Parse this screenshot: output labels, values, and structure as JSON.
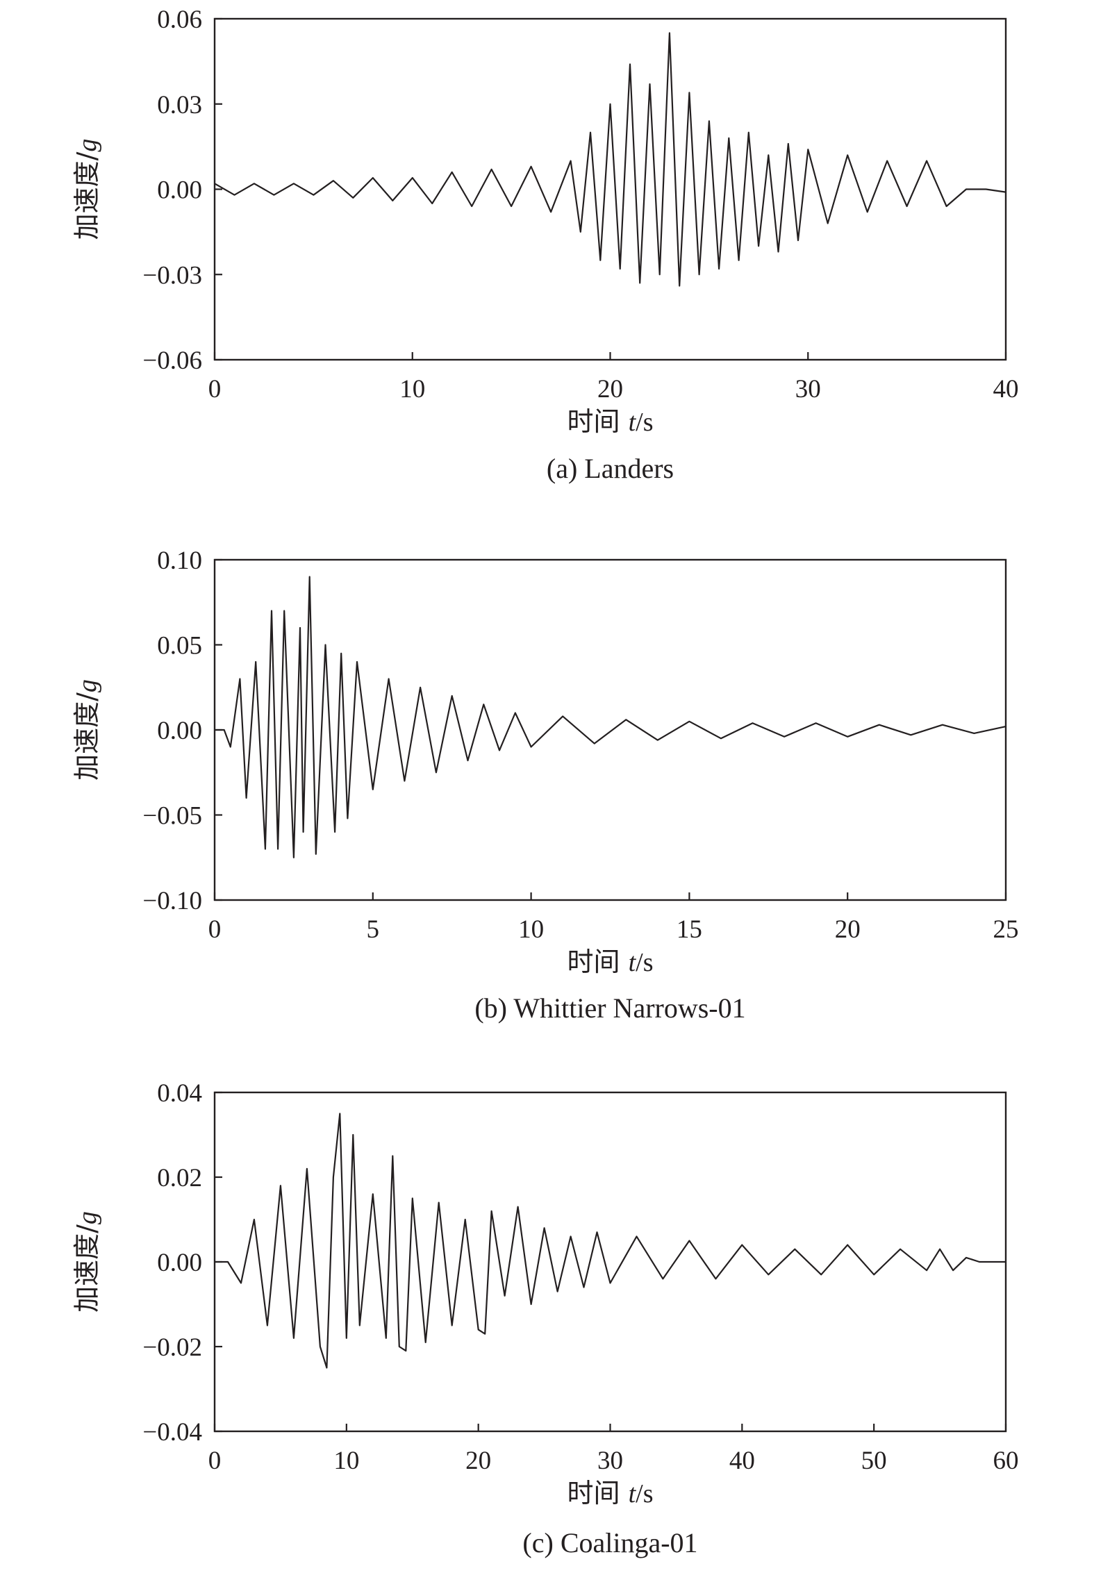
{
  "chart_data": [
    {
      "type": "line",
      "caption": "(a) Landers",
      "ylabel": "加速度/g",
      "xlabel": "时间 t/s",
      "xlim": [
        0,
        40
      ],
      "ylim": [
        -0.06,
        0.06
      ],
      "x_ticks": [
        "0",
        "10",
        "20",
        "30",
        "40"
      ],
      "y_ticks": [
        "0.06",
        "0.03",
        "0.00",
        "−0.03",
        "−0.06"
      ],
      "grid": false,
      "line_color": "#231f20",
      "series": [
        {
          "x": [
            0,
            1,
            2,
            3,
            4,
            5,
            6,
            7,
            8,
            9,
            10,
            11,
            12,
            13,
            14,
            15,
            16,
            17,
            18,
            18.5,
            19,
            19.5,
            20,
            20.5,
            21,
            21.5,
            22,
            22.5,
            23,
            23.5,
            24,
            24.5,
            25,
            25.5,
            26,
            26.5,
            27,
            27.5,
            28,
            28.5,
            29,
            29.5,
            30,
            31,
            32,
            33,
            34,
            35,
            36,
            37,
            38,
            39,
            40
          ],
          "y": [
            0.002,
            -0.002,
            0.002,
            -0.002,
            0.002,
            -0.002,
            0.003,
            -0.003,
            0.004,
            -0.004,
            0.004,
            -0.005,
            0.006,
            -0.006,
            0.007,
            -0.006,
            0.008,
            -0.008,
            0.01,
            -0.015,
            0.02,
            -0.025,
            0.03,
            -0.028,
            0.044,
            -0.033,
            0.037,
            -0.03,
            0.055,
            -0.034,
            0.034,
            -0.03,
            0.024,
            -0.028,
            0.018,
            -0.025,
            0.02,
            -0.02,
            0.012,
            -0.022,
            0.016,
            -0.018,
            0.014,
            -0.012,
            0.012,
            -0.008,
            0.01,
            -0.006,
            0.01,
            -0.006,
            0.0,
            0.0,
            -0.001
          ]
        }
      ]
    },
    {
      "type": "line",
      "caption": "(b) Whittier Narrows-01",
      "ylabel": "加速度/g",
      "xlabel": "时间 t/s",
      "xlim": [
        0,
        25
      ],
      "ylim": [
        -0.1,
        0.1
      ],
      "x_ticks": [
        "0",
        "5",
        "10",
        "15",
        "20",
        "25"
      ],
      "y_ticks": [
        "0.10",
        "0.05",
        "0.00",
        "−0.05",
        "−0.10"
      ],
      "grid": false,
      "line_color": "#231f20",
      "series": [
        {
          "x": [
            0,
            0.3,
            0.5,
            0.8,
            1.0,
            1.3,
            1.6,
            1.8,
            2.0,
            2.2,
            2.5,
            2.7,
            2.8,
            3.0,
            3.2,
            3.5,
            3.8,
            4.0,
            4.2,
            4.5,
            5.0,
            5.5,
            6.0,
            6.5,
            7.0,
            7.5,
            8.0,
            8.5,
            9.0,
            9.5,
            10.0,
            11.0,
            12.0,
            13.0,
            14.0,
            15.0,
            16.0,
            17.0,
            18.0,
            19.0,
            20.0,
            21.0,
            22.0,
            23.0,
            24.0,
            25.0
          ],
          "y": [
            0.0,
            0.0,
            -0.01,
            0.03,
            -0.04,
            0.04,
            -0.07,
            0.07,
            -0.07,
            0.07,
            -0.075,
            0.06,
            -0.06,
            0.09,
            -0.073,
            0.05,
            -0.06,
            0.045,
            -0.052,
            0.04,
            -0.035,
            0.03,
            -0.03,
            0.025,
            -0.025,
            0.02,
            -0.018,
            0.015,
            -0.012,
            0.01,
            -0.01,
            0.008,
            -0.008,
            0.006,
            -0.006,
            0.005,
            -0.005,
            0.004,
            -0.004,
            0.004,
            -0.004,
            0.003,
            -0.003,
            0.003,
            -0.002,
            0.002
          ]
        }
      ]
    },
    {
      "type": "line",
      "caption": "(c) Coalinga-01",
      "ylabel": "加速度/g",
      "xlabel": "时间 t/s",
      "xlim": [
        0,
        60
      ],
      "ylim": [
        -0.04,
        0.04
      ],
      "x_ticks": [
        "0",
        "10",
        "20",
        "30",
        "40",
        "50",
        "60"
      ],
      "y_ticks": [
        "0.04",
        "0.02",
        "0.00",
        "−0.02",
        "−0.04"
      ],
      "grid": false,
      "line_color": "#231f20",
      "series": [
        {
          "x": [
            0,
            1,
            2,
            3,
            4,
            5,
            6,
            7,
            8,
            8.5,
            9,
            9.5,
            10,
            10.5,
            11,
            12,
            13,
            13.5,
            14,
            14.5,
            15,
            16,
            17,
            18,
            19,
            20,
            20.5,
            21,
            22,
            23,
            24,
            25,
            26,
            27,
            28,
            29,
            30,
            32,
            34,
            36,
            38,
            40,
            42,
            44,
            46,
            48,
            50,
            52,
            54,
            55,
            56,
            57,
            58,
            60
          ],
          "y": [
            0.0,
            0.0,
            -0.005,
            0.01,
            -0.015,
            0.018,
            -0.018,
            0.022,
            -0.02,
            -0.025,
            0.02,
            0.035,
            -0.018,
            0.03,
            -0.015,
            0.016,
            -0.018,
            0.025,
            -0.02,
            -0.021,
            0.015,
            -0.019,
            0.014,
            -0.015,
            0.01,
            -0.016,
            -0.017,
            0.012,
            -0.008,
            0.013,
            -0.01,
            0.008,
            -0.007,
            0.006,
            -0.006,
            0.007,
            -0.005,
            0.006,
            -0.004,
            0.005,
            -0.004,
            0.004,
            -0.003,
            0.003,
            -0.003,
            0.004,
            -0.003,
            0.003,
            -0.002,
            0.003,
            -0.002,
            0.001,
            0.0,
            0.0
          ]
        }
      ]
    }
  ]
}
